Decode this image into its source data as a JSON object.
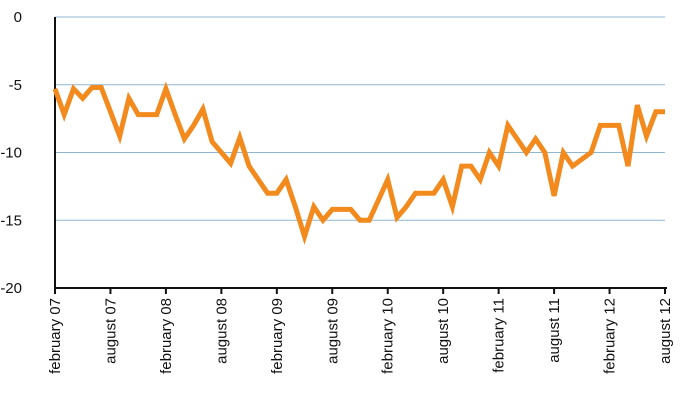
{
  "chart_data": {
    "type": "line",
    "categories": [
      "february 07",
      null,
      null,
      null,
      null,
      null,
      "august 07",
      null,
      null,
      null,
      null,
      null,
      "february 08",
      null,
      null,
      null,
      null,
      null,
      "august 08",
      null,
      null,
      null,
      null,
      null,
      "february 09",
      null,
      null,
      null,
      null,
      null,
      "august 09",
      null,
      null,
      null,
      null,
      null,
      "february 10",
      null,
      null,
      null,
      null,
      null,
      "august 10",
      null,
      null,
      null,
      null,
      null,
      "february 11",
      null,
      null,
      null,
      null,
      null,
      "august 11",
      null,
      null,
      null,
      null,
      null,
      "february 12",
      null,
      null,
      null,
      null,
      null,
      "august 12"
    ],
    "series": [
      {
        "color": "#f28a1e",
        "values": [
          -5.3,
          -7.2,
          -5.3,
          -6,
          -5.2,
          -5.2,
          -7,
          -8.8,
          -6,
          -7.2,
          -7.2,
          -7.2,
          -5.3,
          -7.2,
          -9,
          -8,
          -6.8,
          -9.2,
          -10,
          -10.8,
          -8.9,
          -11,
          -12,
          -13,
          -13,
          -12,
          -14,
          -16.2,
          -14,
          -15,
          -14.2,
          -14.2,
          -14.2,
          -15,
          -15,
          -13.5,
          -12,
          -14.8,
          -14,
          -13,
          -13,
          -13,
          -12,
          -14,
          -11,
          -11,
          -12,
          -10,
          -11,
          -8,
          -9,
          -10,
          -9,
          -10,
          -13.2,
          -10,
          -11,
          -10.5,
          -10,
          -8,
          -8,
          -8,
          -11,
          -6.5,
          -8.8,
          -7,
          -7
        ]
      }
    ],
    "ylim": [
      -20,
      0
    ],
    "yticks": [
      0,
      -5,
      -10,
      -15,
      -20
    ],
    "grid": true
  }
}
